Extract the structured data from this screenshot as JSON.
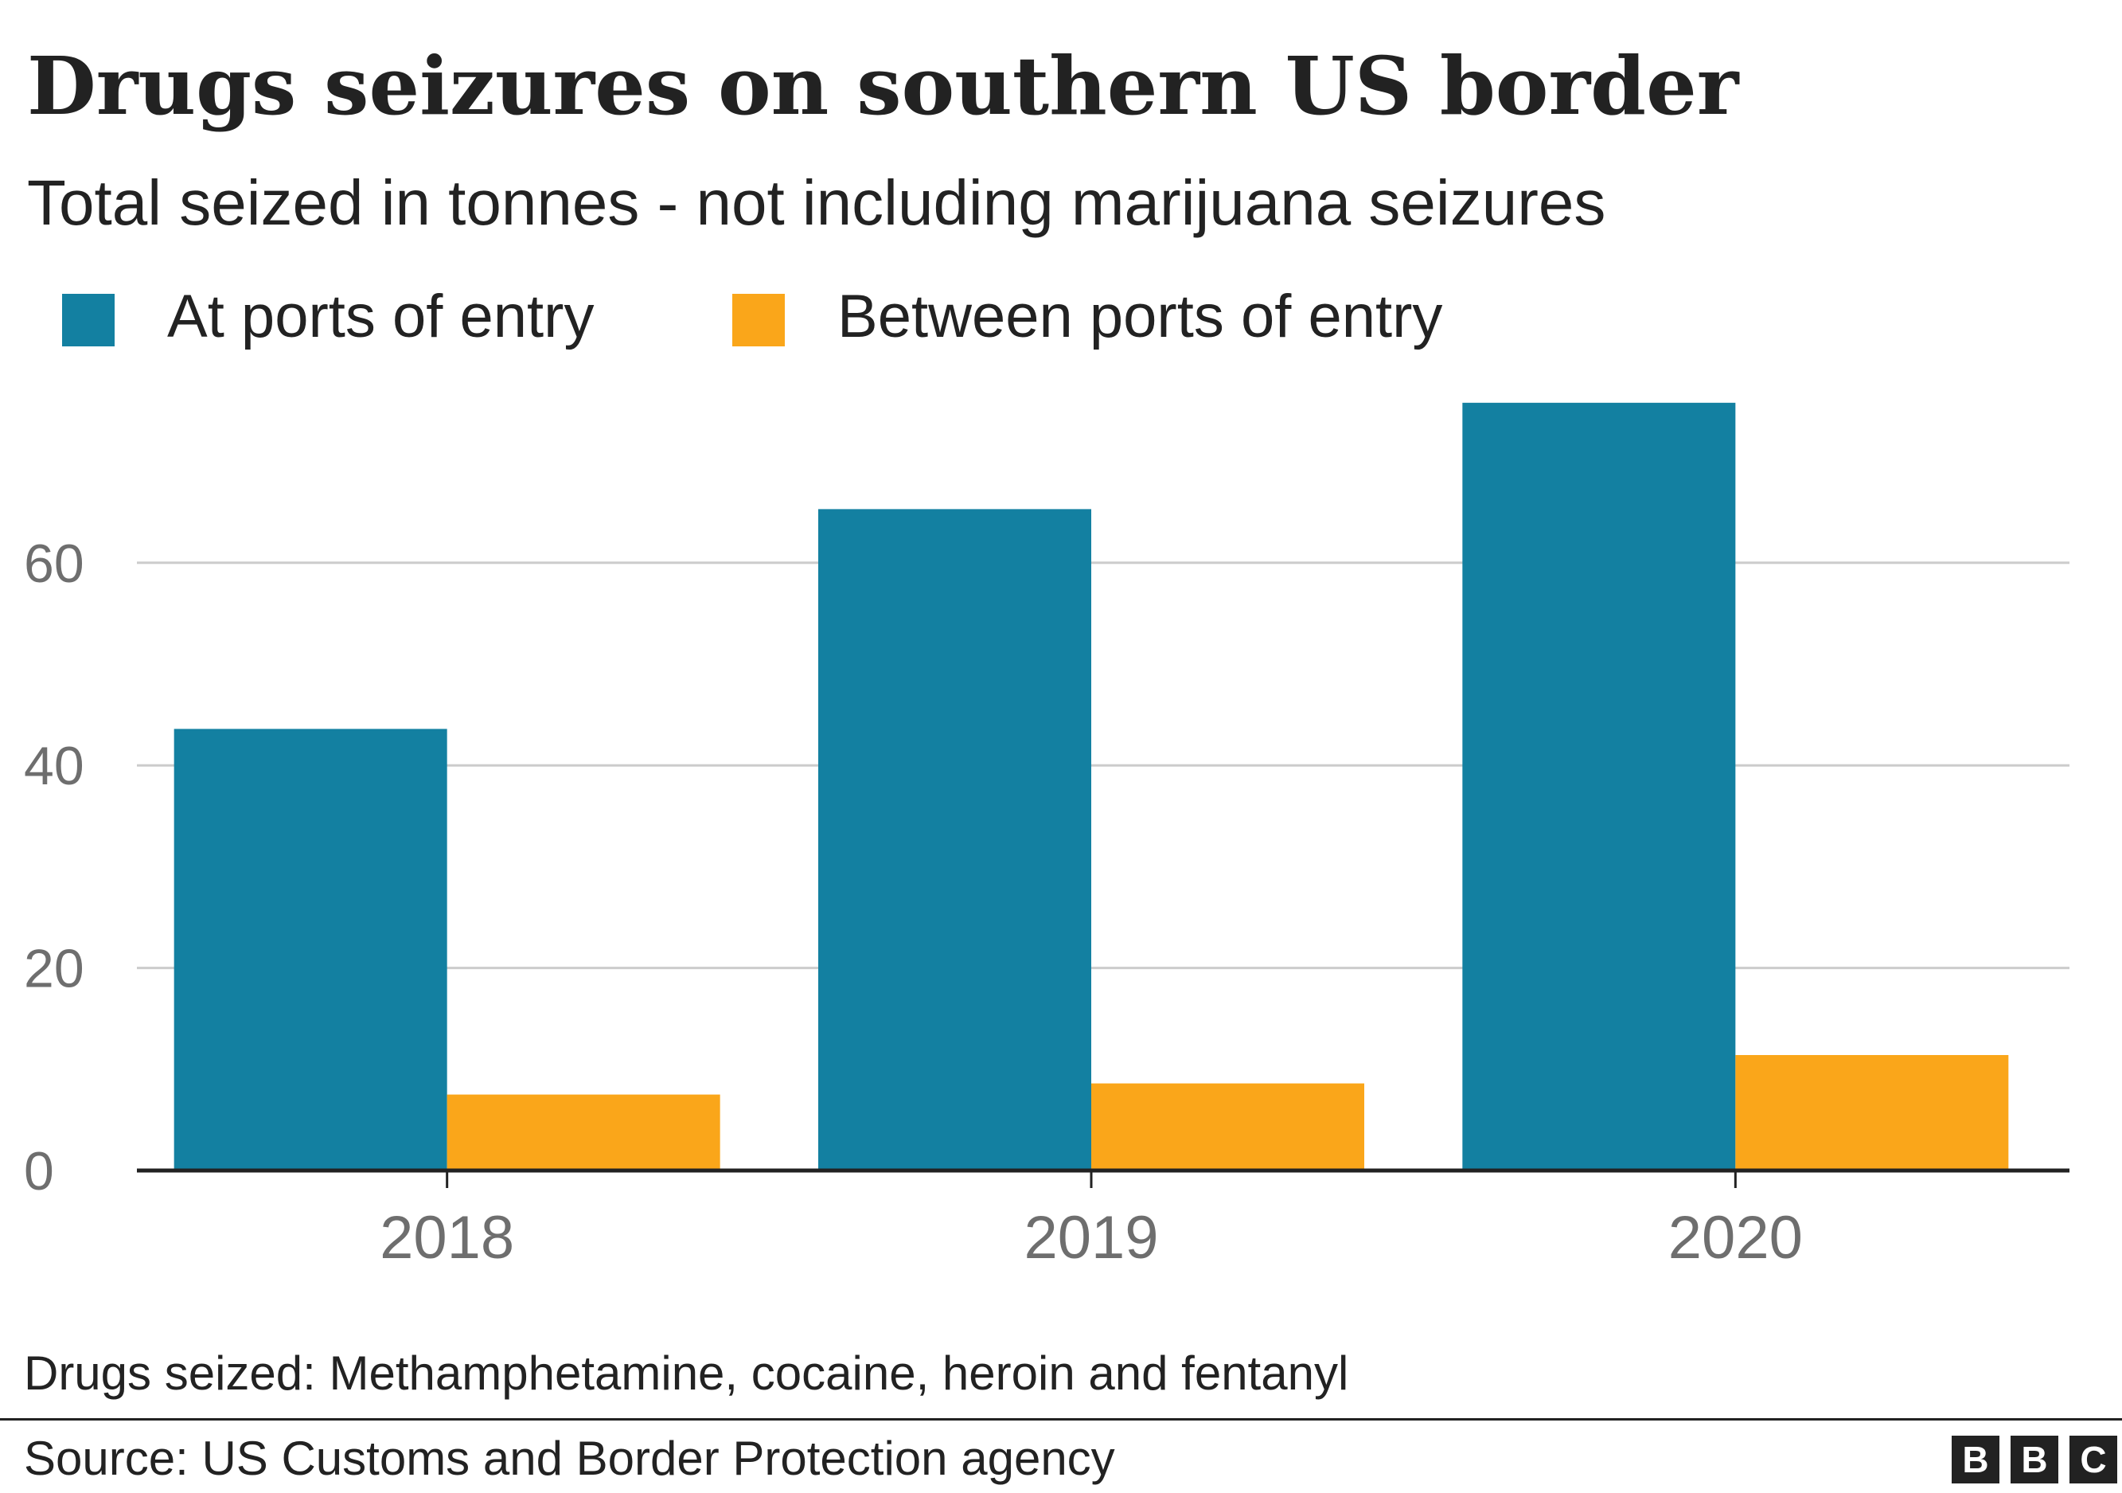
{
  "colors": {
    "at_ports": "#1380A1",
    "between_ports": "#FAA61A",
    "grid": "#CCCCCC",
    "axis": "#222222",
    "tick_text": "#6E6E6E"
  },
  "chart_data": {
    "type": "bar",
    "title": "Drugs seizures on southern US border",
    "subtitle": "Total seized in tonnes - not including marijuana seizures",
    "categories": [
      "2018",
      "2019",
      "2020"
    ],
    "series": [
      {
        "name": "At ports of entry",
        "color": "#1380A1",
        "values": [
          43.6,
          65.3,
          75.8
        ]
      },
      {
        "name": "Between ports of entry",
        "color": "#FAA61A",
        "values": [
          7.5,
          8.6,
          11.4
        ]
      }
    ],
    "xlabel": "",
    "ylabel": "",
    "ylim": [
      0,
      80
    ],
    "yticks": [
      0,
      20,
      40,
      60
    ],
    "grid": true,
    "legend_position": "top-left"
  },
  "footer": {
    "note": "Drugs seized: Methamphetamine, cocaine, heroin and fentanyl",
    "source": "Source: US Customs and Border Protection agency",
    "logo_letters": [
      "B",
      "B",
      "C"
    ]
  }
}
